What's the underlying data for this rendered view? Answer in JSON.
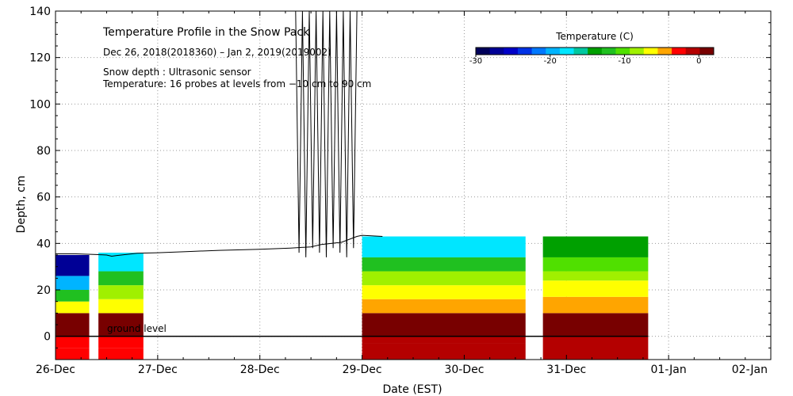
{
  "chart_data": {
    "type": "heatmap",
    "title": "Temperature Profile in the Snow Pack",
    "subtitle": "Dec 26, 2018(2018360) – Jan  2, 2019(2019002)",
    "notes": [
      "Snow depth : Ultrasonic sensor",
      "Temperature: 16 probes at levels from −10 cm to 90 cm"
    ],
    "xlabel": "Date (EST)",
    "ylabel": "Depth, cm",
    "x_ticks": [
      "26-Dec",
      "27-Dec",
      "28-Dec",
      "29-Dec",
      "30-Dec",
      "31-Dec",
      "01-Jan",
      "02-Jan"
    ],
    "xlim_days": [
      0,
      7
    ],
    "ylim": [
      -10,
      140
    ],
    "y_ticks": [
      0,
      20,
      40,
      60,
      80,
      100,
      120,
      140
    ],
    "ground_label": "ground level",
    "grid": true,
    "colorbar": {
      "title": "Temperature (C)",
      "range": [
        -30,
        2
      ],
      "tick_labels": [
        "-30",
        "-20",
        "-10",
        "0"
      ],
      "tick_values": [
        -30,
        -20,
        -10,
        0
      ],
      "colors": [
        "#00005a",
        "#000096",
        "#0000c8",
        "#0032e6",
        "#0078ff",
        "#00b4ff",
        "#00e6ff",
        "#00c8a0",
        "#00a000",
        "#20c020",
        "#50e000",
        "#a0f000",
        "#ffff00",
        "#ffa500",
        "#ff0000",
        "#b40000",
        "#780000"
      ]
    },
    "snow_depth_series": {
      "name": "Snow depth (cm)",
      "x_days": [
        0.0,
        0.2,
        0.4,
        0.5,
        0.55,
        0.6,
        0.8,
        1.0,
        1.3,
        1.6,
        2.0,
        2.3,
        2.5,
        2.6,
        2.8,
        2.95,
        3.0,
        3.2
      ],
      "values": [
        35.5,
        35.5,
        35.2,
        35.0,
        34.5,
        34.8,
        35.8,
        36.0,
        36.5,
        37.0,
        37.5,
        38.0,
        38.5,
        39.5,
        40.5,
        43.0,
        43.5,
        43.0
      ]
    },
    "spike_window_days": [
      2.35,
      2.95
    ],
    "data_segments": [
      {
        "name": "segment-1",
        "start_day": 0.0,
        "end_day": 0.33,
        "top_cm": 35,
        "bands": [
          {
            "from": -10,
            "to": -5,
            "temp": -2.0
          },
          {
            "from": -5,
            "to": 0,
            "temp": -3.5
          },
          {
            "from": 0,
            "to": 10,
            "temp": 1.0
          },
          {
            "from": 10,
            "to": 15,
            "temp": -7.0
          },
          {
            "from": 15,
            "to": 20,
            "temp": -13.0
          },
          {
            "from": 20,
            "to": 26,
            "temp": -20.0
          },
          {
            "from": 26,
            "to": 35,
            "temp": -27.0
          }
        ]
      },
      {
        "name": "segment-2",
        "start_day": 0.42,
        "end_day": 0.86,
        "top_cm": 36,
        "bands": [
          {
            "from": -10,
            "to": -5,
            "temp": -2.0
          },
          {
            "from": -5,
            "to": 0,
            "temp": -3.5
          },
          {
            "from": 0,
            "to": 10,
            "temp": 1.0
          },
          {
            "from": 10,
            "to": 16,
            "temp": -6.0
          },
          {
            "from": 16,
            "to": 22,
            "temp": -9.0
          },
          {
            "from": 22,
            "to": 28,
            "temp": -13.0
          },
          {
            "from": 28,
            "to": 36,
            "temp": -18.0
          }
        ]
      },
      {
        "name": "segment-3",
        "start_day": 3.0,
        "end_day": 4.6,
        "top_cm": 43,
        "bands": [
          {
            "from": -10,
            "to": -3,
            "temp": -1.5
          },
          {
            "from": -3,
            "to": 0,
            "temp": -0.5
          },
          {
            "from": 0,
            "to": 10,
            "temp": 1.0
          },
          {
            "from": 10,
            "to": 16,
            "temp": -4.0
          },
          {
            "from": 16,
            "to": 22,
            "temp": -6.5
          },
          {
            "from": 22,
            "to": 28,
            "temp": -9.0
          },
          {
            "from": 28,
            "to": 34,
            "temp": -13.0
          },
          {
            "from": 34,
            "to": 43,
            "temp": -18.0
          }
        ]
      },
      {
        "name": "segment-4",
        "start_day": 4.77,
        "end_day": 5.8,
        "top_cm": 43,
        "bands": [
          {
            "from": -10,
            "to": 0,
            "temp": -1.5
          },
          {
            "from": 0,
            "to": 10,
            "temp": 1.0
          },
          {
            "from": 10,
            "to": 17,
            "temp": -4.5
          },
          {
            "from": 17,
            "to": 24,
            "temp": -7.0
          },
          {
            "from": 24,
            "to": 28,
            "temp": -9.0
          },
          {
            "from": 28,
            "to": 34,
            "temp": -10.5
          },
          {
            "from": 34,
            "to": 43,
            "temp": -13.5
          }
        ]
      }
    ]
  }
}
